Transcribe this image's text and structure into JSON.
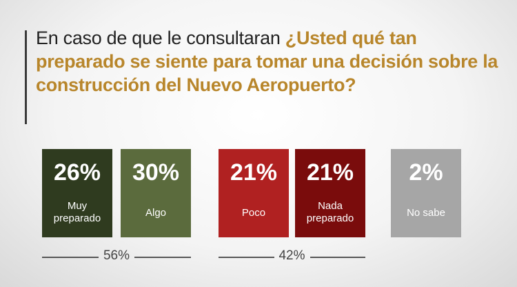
{
  "title": {
    "prefix": "En caso de que le consultaran ",
    "question": "¿Usted qué tan preparado se siente para tomar una decisión sobre la construcción del Nuevo Aeropuerto?"
  },
  "chart_data": {
    "type": "bar",
    "categories": [
      "Muy preparado",
      "Algo",
      "Poco",
      "Nada preparado",
      "No sabe"
    ],
    "values": [
      26,
      30,
      21,
      21,
      2
    ],
    "value_labels": [
      "26%",
      "30%",
      "21%",
      "21%",
      "2%"
    ],
    "colors": [
      "#2f3b1f",
      "#5b6b3d",
      "#b02121",
      "#7a0c0c",
      "#a6a6a6"
    ],
    "groups": [
      {
        "label": "56%",
        "value": 56,
        "members": [
          "Muy preparado",
          "Algo"
        ]
      },
      {
        "label": "42%",
        "value": 42,
        "members": [
          "Poco",
          "Nada preparado"
        ]
      }
    ]
  }
}
